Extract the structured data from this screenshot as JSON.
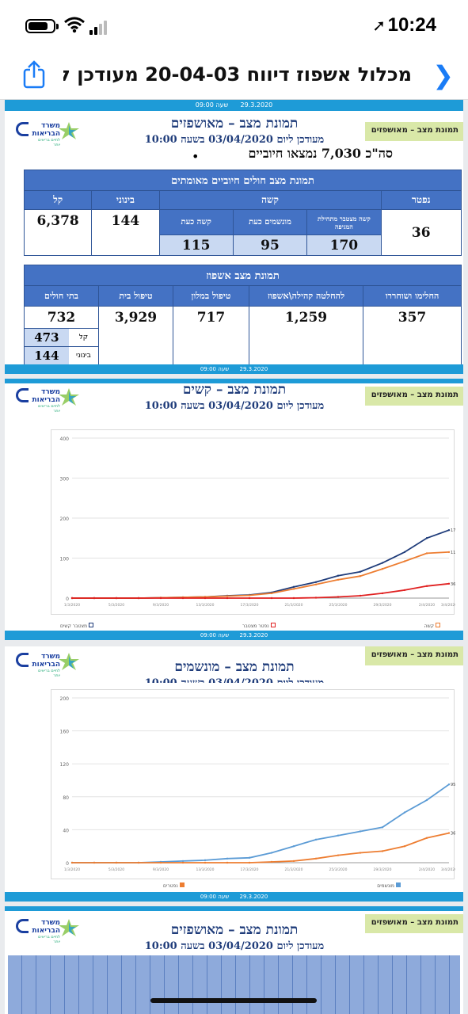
{
  "status_bar": {
    "time": "10:24"
  },
  "header": {
    "title": "מכלול אשפוז דיווח 20-04-03 מעודכן לש..."
  },
  "slide1": {
    "band_date": "29.3.2020",
    "band_time": "שעה 09:00",
    "green_label": "תמונת מצב – מאושפזים",
    "logo_text": "משרד הבריאות",
    "logo_sub": "לחיים בריאים יותר",
    "title": "תמונת מצב – מאושפזים",
    "subtitle": "מעודכן ליום 03/04/2020 בשעה 10:00",
    "total": "סה\"כ 7,030 נמצאו חיוביים",
    "table1": {
      "header": "תמונת מצב חולים חיוביים מאומתים",
      "col_dead": "נפטר",
      "col_severe": "קשה",
      "col_moderate": "בינוני",
      "col_light": "קל",
      "sub_cumulative": "קשה מצטבר מתחילת המגיפה",
      "sub_ventilated": "מונשמים כעת",
      "sub_severe_now": "קשה כעת",
      "dead": "36",
      "moderate": "144",
      "light": "6,378",
      "cumulative": "170",
      "ventilated": "95",
      "severe_now": "115"
    },
    "table2": {
      "header": "תמונת מצב אשפוז",
      "col_recovered": "החלימו ושוחררו",
      "col_community": "להחלטה קהילה\\אשפוז",
      "col_hotel": "טיפול במלון",
      "col_home": "טיפול בית",
      "col_hosp": "בתי חולים",
      "recovered": "357",
      "community": "1,259",
      "hotel": "717",
      "home": "3,929",
      "hosp": "732",
      "hosp_light_label": "קל",
      "hosp_light": "473",
      "hosp_mod_label": "בינוני",
      "hosp_mod": "144"
    }
  },
  "slide2": {
    "band_date": "29.3.2020",
    "band_time": "שעה 09:00",
    "green_label": "תמונת מצב – מאושפזים",
    "title": "תמונת מצב – קשים",
    "subtitle": "מעודכן ליום 03/04/2020 בשעה 10:00",
    "legend": [
      "מצטבר קשים",
      "נפטר מצטבר",
      "קשה"
    ]
  },
  "slide3": {
    "band_date": "29.3.2020",
    "band_time": "שעה 09:00",
    "green_label": "תמונת מצב – מאושפזים",
    "title": "תמונת מצב – מונשמים",
    "subtitle": "מעודכן ליום 03/04/2020 בשעה 10:00",
    "legend": [
      "נפטרים",
      "מונשמים"
    ]
  },
  "slide4": {
    "green_label": "תמונת מצב – מאושפזים",
    "title": "תמונת מצב – מאושפזים",
    "subtitle": "מעודכן ליום 03/04/2020 בשעה 10:00"
  },
  "colors": {
    "band": "#1e9bd7",
    "table_header": "#4472c4",
    "title": "#1f3c7a",
    "green_box": "#d9e8a8",
    "ios_blue": "#1a7cf6"
  },
  "chart_data": [
    {
      "type": "line",
      "title": "",
      "ylim": [
        0,
        400
      ],
      "yticks": [
        0,
        100,
        200,
        300,
        400
      ],
      "x": [
        "1/3/2020",
        "3/3/2020",
        "5/3/2020",
        "7/3/2020",
        "9/3/2020",
        "11/3/2020",
        "13/3/2020",
        "15/3/2020",
        "17/3/2020",
        "19/3/2020",
        "21/3/2020",
        "23/3/2020",
        "25/3/2020",
        "27/3/2020",
        "29/3/2020",
        "31/3/2020",
        "2/4/2020",
        "3/4/2020"
      ],
      "series": [
        {
          "name": "מצטבר קשים",
          "color": "#1f3c7a",
          "values": [
            0,
            0,
            0,
            0,
            1,
            2,
            3,
            6,
            8,
            14,
            28,
            40,
            56,
            66,
            88,
            115,
            150,
            170
          ]
        },
        {
          "name": "קשה",
          "color": "#ed7d31",
          "values": [
            0,
            0,
            0,
            0,
            1,
            2,
            3,
            5,
            7,
            12,
            23,
            34,
            46,
            55,
            73,
            92,
            112,
            115
          ]
        },
        {
          "name": "נפטר מצטבר",
          "color": "#e02020",
          "values": [
            0,
            0,
            0,
            0,
            0,
            0,
            0,
            0,
            0,
            0,
            0,
            1,
            3,
            6,
            12,
            20,
            30,
            36
          ]
        }
      ],
      "point_labels": {
        "last": [
          "170",
          "115",
          "36"
        ]
      },
      "grid": true
    },
    {
      "type": "line",
      "title": "",
      "ylim": [
        0,
        200
      ],
      "yticks": [
        0,
        40,
        80,
        120,
        160,
        200
      ],
      "x": [
        "1/3/2020",
        "3/3/2020",
        "5/3/2020",
        "7/3/2020",
        "9/3/2020",
        "11/3/2020",
        "13/3/2020",
        "15/3/2020",
        "17/3/2020",
        "19/3/2020",
        "21/3/2020",
        "23/3/2020",
        "25/3/2020",
        "27/3/2020",
        "29/3/2020",
        "31/3/2020",
        "2/4/2020",
        "3/4/2020"
      ],
      "series": [
        {
          "name": "מונשמים",
          "color": "#5b9bd5",
          "values": [
            0,
            0,
            0,
            0,
            1,
            2,
            3,
            5,
            6,
            12,
            20,
            28,
            33,
            38,
            43,
            61,
            76,
            95
          ]
        },
        {
          "name": "נפטרים",
          "color": "#ed7d31",
          "values": [
            0,
            0,
            0,
            0,
            0,
            0,
            0,
            0,
            0,
            1,
            2,
            5,
            9,
            12,
            14,
            20,
            30,
            36
          ]
        }
      ],
      "point_labels": {
        "last": [
          "95",
          "36"
        ]
      },
      "grid": true
    }
  ]
}
